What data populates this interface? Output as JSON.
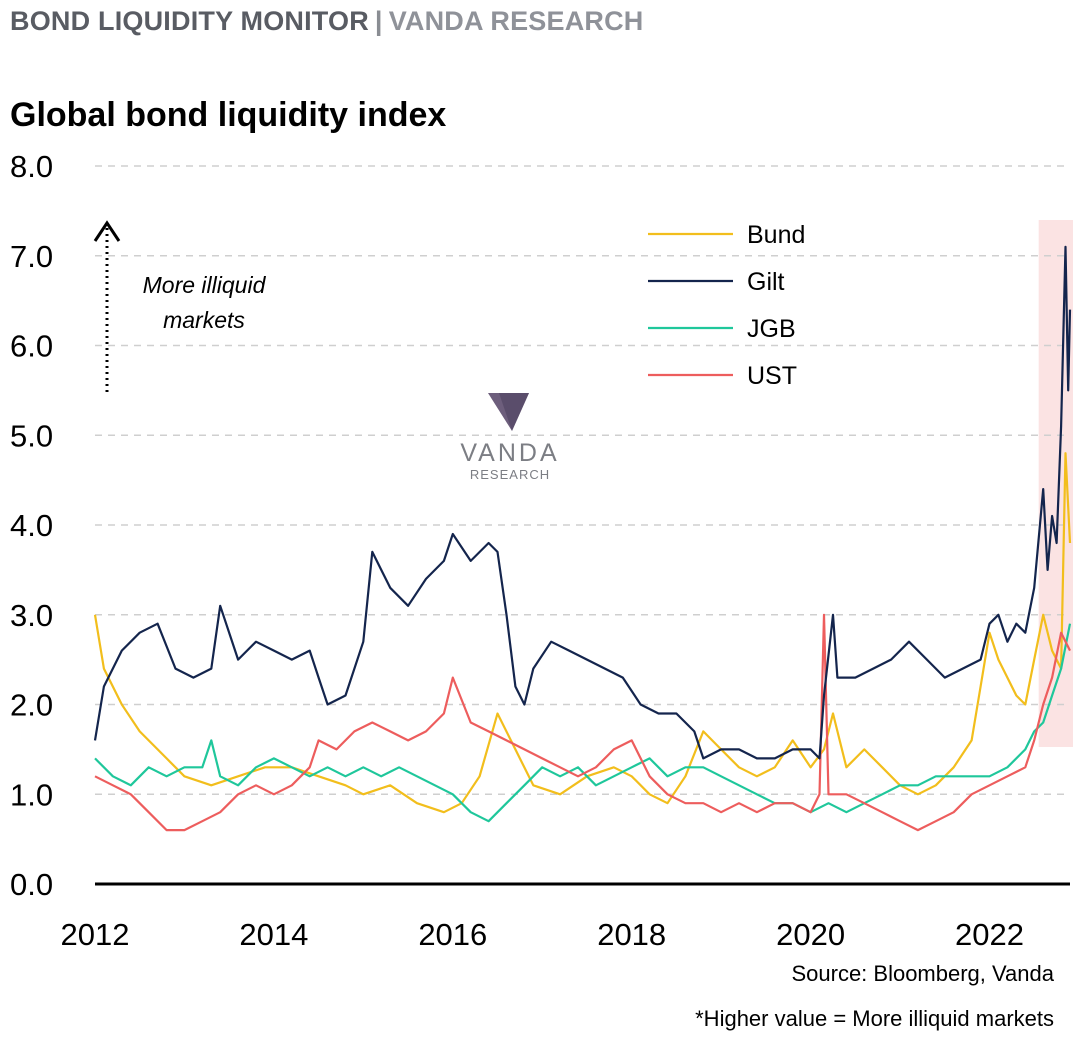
{
  "header": {
    "left": "BOND LIQUIDITY MONITOR",
    "separator": "|",
    "right": "VANDA RESEARCH"
  },
  "watermark": {
    "line1": "VANDA",
    "line2": "RESEARCH"
  },
  "annotation": {
    "line1": "More illiquid",
    "line2": "markets"
  },
  "footer": {
    "source": "Source: Bloomberg, Vanda",
    "note": "*Higher value = More illiquid markets"
  },
  "colors": {
    "Bund": "#f2be1c",
    "Gilt": "#14254d",
    "JGB": "#1fc79b",
    "UST": "#ed5d5d",
    "highlight": "#fbe3e3",
    "grid": "#cfcfcf",
    "brand": "#6d5e7c"
  },
  "chart_data": {
    "type": "line",
    "title": "Global bond liquidity index",
    "xlabel": "",
    "ylabel": "",
    "xlim": [
      2012,
      2022.9
    ],
    "ylim": [
      0,
      8
    ],
    "xticks": [
      2012,
      2014,
      2016,
      2018,
      2020,
      2022
    ],
    "yticks": [
      "0.0",
      "1.0",
      "2.0",
      "3.0",
      "4.0",
      "5.0",
      "6.0",
      "7.0",
      "8.0"
    ],
    "grid": "horizontal dashed",
    "legend_position": "top-right",
    "highlight_range": [
      2022.55,
      2022.95
    ],
    "series": [
      {
        "name": "Bund",
        "points": [
          [
            2012.0,
            3.0
          ],
          [
            2012.1,
            2.4
          ],
          [
            2012.3,
            2.0
          ],
          [
            2012.5,
            1.7
          ],
          [
            2012.8,
            1.4
          ],
          [
            2013.0,
            1.2
          ],
          [
            2013.3,
            1.1
          ],
          [
            2013.6,
            1.2
          ],
          [
            2013.9,
            1.3
          ],
          [
            2014.2,
            1.3
          ],
          [
            2014.5,
            1.2
          ],
          [
            2014.8,
            1.1
          ],
          [
            2015.0,
            1.0
          ],
          [
            2015.3,
            1.1
          ],
          [
            2015.6,
            0.9
          ],
          [
            2015.9,
            0.8
          ],
          [
            2016.1,
            0.9
          ],
          [
            2016.3,
            1.2
          ],
          [
            2016.5,
            1.9
          ],
          [
            2016.7,
            1.5
          ],
          [
            2016.9,
            1.1
          ],
          [
            2017.2,
            1.0
          ],
          [
            2017.5,
            1.2
          ],
          [
            2017.8,
            1.3
          ],
          [
            2018.0,
            1.2
          ],
          [
            2018.2,
            1.0
          ],
          [
            2018.4,
            0.9
          ],
          [
            2018.6,
            1.2
          ],
          [
            2018.8,
            1.7
          ],
          [
            2019.0,
            1.5
          ],
          [
            2019.2,
            1.3
          ],
          [
            2019.4,
            1.2
          ],
          [
            2019.6,
            1.3
          ],
          [
            2019.8,
            1.6
          ],
          [
            2020.0,
            1.3
          ],
          [
            2020.15,
            1.5
          ],
          [
            2020.25,
            1.9
          ],
          [
            2020.4,
            1.3
          ],
          [
            2020.6,
            1.5
          ],
          [
            2020.8,
            1.3
          ],
          [
            2021.0,
            1.1
          ],
          [
            2021.2,
            1.0
          ],
          [
            2021.4,
            1.1
          ],
          [
            2021.6,
            1.3
          ],
          [
            2021.8,
            1.6
          ],
          [
            2021.9,
            2.2
          ],
          [
            2022.0,
            2.8
          ],
          [
            2022.1,
            2.5
          ],
          [
            2022.2,
            2.3
          ],
          [
            2022.3,
            2.1
          ],
          [
            2022.4,
            2.0
          ],
          [
            2022.5,
            2.5
          ],
          [
            2022.6,
            3.0
          ],
          [
            2022.7,
            2.6
          ],
          [
            2022.8,
            2.4
          ],
          [
            2022.85,
            4.8
          ],
          [
            2022.9,
            3.8
          ]
        ]
      },
      {
        "name": "Gilt",
        "points": [
          [
            2012.0,
            1.6
          ],
          [
            2012.1,
            2.2
          ],
          [
            2012.3,
            2.6
          ],
          [
            2012.5,
            2.8
          ],
          [
            2012.7,
            2.9
          ],
          [
            2012.9,
            2.4
          ],
          [
            2013.1,
            2.3
          ],
          [
            2013.3,
            2.4
          ],
          [
            2013.4,
            3.1
          ],
          [
            2013.6,
            2.5
          ],
          [
            2013.8,
            2.7
          ],
          [
            2014.0,
            2.6
          ],
          [
            2014.2,
            2.5
          ],
          [
            2014.4,
            2.6
          ],
          [
            2014.5,
            2.3
          ],
          [
            2014.6,
            2.0
          ],
          [
            2014.8,
            2.1
          ],
          [
            2015.0,
            2.7
          ],
          [
            2015.1,
            3.7
          ],
          [
            2015.3,
            3.3
          ],
          [
            2015.5,
            3.1
          ],
          [
            2015.7,
            3.4
          ],
          [
            2015.9,
            3.6
          ],
          [
            2016.0,
            3.9
          ],
          [
            2016.2,
            3.6
          ],
          [
            2016.4,
            3.8
          ],
          [
            2016.5,
            3.7
          ],
          [
            2016.6,
            3.0
          ],
          [
            2016.7,
            2.2
          ],
          [
            2016.8,
            2.0
          ],
          [
            2016.9,
            2.4
          ],
          [
            2017.1,
            2.7
          ],
          [
            2017.3,
            2.6
          ],
          [
            2017.5,
            2.5
          ],
          [
            2017.7,
            2.4
          ],
          [
            2017.9,
            2.3
          ],
          [
            2018.1,
            2.0
          ],
          [
            2018.3,
            1.9
          ],
          [
            2018.5,
            1.9
          ],
          [
            2018.7,
            1.7
          ],
          [
            2018.8,
            1.4
          ],
          [
            2019.0,
            1.5
          ],
          [
            2019.2,
            1.5
          ],
          [
            2019.4,
            1.4
          ],
          [
            2019.6,
            1.4
          ],
          [
            2019.8,
            1.5
          ],
          [
            2020.0,
            1.5
          ],
          [
            2020.1,
            1.4
          ],
          [
            2020.15,
            2.1
          ],
          [
            2020.25,
            3.0
          ],
          [
            2020.3,
            2.3
          ],
          [
            2020.5,
            2.3
          ],
          [
            2020.7,
            2.4
          ],
          [
            2020.9,
            2.5
          ],
          [
            2021.1,
            2.7
          ],
          [
            2021.3,
            2.5
          ],
          [
            2021.5,
            2.3
          ],
          [
            2021.7,
            2.4
          ],
          [
            2021.9,
            2.5
          ],
          [
            2022.0,
            2.9
          ],
          [
            2022.1,
            3.0
          ],
          [
            2022.2,
            2.7
          ],
          [
            2022.3,
            2.9
          ],
          [
            2022.4,
            2.8
          ],
          [
            2022.5,
            3.3
          ],
          [
            2022.6,
            4.4
          ],
          [
            2022.65,
            3.5
          ],
          [
            2022.7,
            4.1
          ],
          [
            2022.75,
            3.8
          ],
          [
            2022.8,
            5.1
          ],
          [
            2022.85,
            7.1
          ],
          [
            2022.88,
            5.5
          ],
          [
            2022.9,
            6.4
          ]
        ]
      },
      {
        "name": "JGB",
        "points": [
          [
            2012.0,
            1.4
          ],
          [
            2012.2,
            1.2
          ],
          [
            2012.4,
            1.1
          ],
          [
            2012.6,
            1.3
          ],
          [
            2012.8,
            1.2
          ],
          [
            2013.0,
            1.3
          ],
          [
            2013.2,
            1.3
          ],
          [
            2013.3,
            1.6
          ],
          [
            2013.4,
            1.2
          ],
          [
            2013.6,
            1.1
          ],
          [
            2013.8,
            1.3
          ],
          [
            2014.0,
            1.4
          ],
          [
            2014.2,
            1.3
          ],
          [
            2014.4,
            1.2
          ],
          [
            2014.6,
            1.3
          ],
          [
            2014.8,
            1.2
          ],
          [
            2015.0,
            1.3
          ],
          [
            2015.2,
            1.2
          ],
          [
            2015.4,
            1.3
          ],
          [
            2015.6,
            1.2
          ],
          [
            2015.8,
            1.1
          ],
          [
            2016.0,
            1.0
          ],
          [
            2016.2,
            0.8
          ],
          [
            2016.4,
            0.7
          ],
          [
            2016.6,
            0.9
          ],
          [
            2016.8,
            1.1
          ],
          [
            2017.0,
            1.3
          ],
          [
            2017.2,
            1.2
          ],
          [
            2017.4,
            1.3
          ],
          [
            2017.6,
            1.1
          ],
          [
            2017.8,
            1.2
          ],
          [
            2018.0,
            1.3
          ],
          [
            2018.2,
            1.4
          ],
          [
            2018.4,
            1.2
          ],
          [
            2018.6,
            1.3
          ],
          [
            2018.8,
            1.3
          ],
          [
            2019.0,
            1.2
          ],
          [
            2019.2,
            1.1
          ],
          [
            2019.4,
            1.0
          ],
          [
            2019.6,
            0.9
          ],
          [
            2019.8,
            0.9
          ],
          [
            2020.0,
            0.8
          ],
          [
            2020.2,
            0.9
          ],
          [
            2020.4,
            0.8
          ],
          [
            2020.6,
            0.9
          ],
          [
            2020.8,
            1.0
          ],
          [
            2021.0,
            1.1
          ],
          [
            2021.2,
            1.1
          ],
          [
            2021.4,
            1.2
          ],
          [
            2021.6,
            1.2
          ],
          [
            2021.8,
            1.2
          ],
          [
            2022.0,
            1.2
          ],
          [
            2022.2,
            1.3
          ],
          [
            2022.4,
            1.5
          ],
          [
            2022.5,
            1.7
          ],
          [
            2022.6,
            1.8
          ],
          [
            2022.7,
            2.1
          ],
          [
            2022.8,
            2.4
          ],
          [
            2022.9,
            2.9
          ]
        ]
      },
      {
        "name": "UST",
        "points": [
          [
            2012.0,
            1.2
          ],
          [
            2012.2,
            1.1
          ],
          [
            2012.4,
            1.0
          ],
          [
            2012.6,
            0.8
          ],
          [
            2012.8,
            0.6
          ],
          [
            2013.0,
            0.6
          ],
          [
            2013.2,
            0.7
          ],
          [
            2013.4,
            0.8
          ],
          [
            2013.6,
            1.0
          ],
          [
            2013.8,
            1.1
          ],
          [
            2014.0,
            1.0
          ],
          [
            2014.2,
            1.1
          ],
          [
            2014.4,
            1.3
          ],
          [
            2014.5,
            1.6
          ],
          [
            2014.7,
            1.5
          ],
          [
            2014.9,
            1.7
          ],
          [
            2015.1,
            1.8
          ],
          [
            2015.3,
            1.7
          ],
          [
            2015.5,
            1.6
          ],
          [
            2015.7,
            1.7
          ],
          [
            2015.9,
            1.9
          ],
          [
            2016.0,
            2.3
          ],
          [
            2016.2,
            1.8
          ],
          [
            2016.4,
            1.7
          ],
          [
            2016.6,
            1.6
          ],
          [
            2016.8,
            1.5
          ],
          [
            2017.0,
            1.4
          ],
          [
            2017.2,
            1.3
          ],
          [
            2017.4,
            1.2
          ],
          [
            2017.6,
            1.3
          ],
          [
            2017.8,
            1.5
          ],
          [
            2018.0,
            1.6
          ],
          [
            2018.2,
            1.2
          ],
          [
            2018.4,
            1.0
          ],
          [
            2018.6,
            0.9
          ],
          [
            2018.8,
            0.9
          ],
          [
            2019.0,
            0.8
          ],
          [
            2019.2,
            0.9
          ],
          [
            2019.4,
            0.8
          ],
          [
            2019.6,
            0.9
          ],
          [
            2019.8,
            0.9
          ],
          [
            2020.0,
            0.8
          ],
          [
            2020.1,
            1.0
          ],
          [
            2020.15,
            3.0
          ],
          [
            2020.2,
            1.0
          ],
          [
            2020.4,
            1.0
          ],
          [
            2020.6,
            0.9
          ],
          [
            2020.8,
            0.8
          ],
          [
            2021.0,
            0.7
          ],
          [
            2021.2,
            0.6
          ],
          [
            2021.4,
            0.7
          ],
          [
            2021.6,
            0.8
          ],
          [
            2021.8,
            1.0
          ],
          [
            2022.0,
            1.1
          ],
          [
            2022.2,
            1.2
          ],
          [
            2022.4,
            1.3
          ],
          [
            2022.5,
            1.6
          ],
          [
            2022.6,
            2.0
          ],
          [
            2022.7,
            2.3
          ],
          [
            2022.8,
            2.8
          ],
          [
            2022.9,
            2.6
          ]
        ]
      }
    ]
  }
}
